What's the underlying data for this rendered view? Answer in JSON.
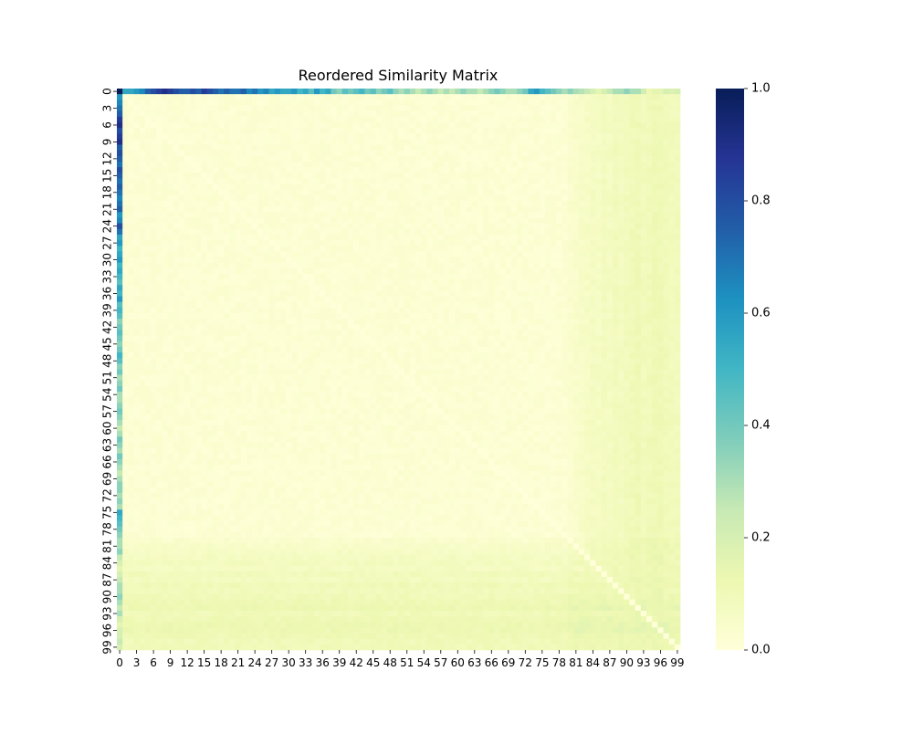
{
  "chart_data": {
    "type": "heatmap",
    "title": "Reordered Similarity Matrix",
    "xlabel": "",
    "ylabel": "",
    "n": 100,
    "x_tick_labels": [
      "0",
      "3",
      "6",
      "9",
      "12",
      "15",
      "18",
      "21",
      "24",
      "27",
      "30",
      "33",
      "36",
      "39",
      "42",
      "45",
      "48",
      "51",
      "54",
      "57",
      "60",
      "63",
      "66",
      "69",
      "72",
      "75",
      "78",
      "81",
      "84",
      "87",
      "90",
      "93",
      "96",
      "99"
    ],
    "y_tick_labels": [
      "0",
      "3",
      "6",
      "9",
      "12",
      "15",
      "18",
      "21",
      "24",
      "27",
      "30",
      "33",
      "36",
      "39",
      "42",
      "45",
      "48",
      "51",
      "54",
      "57",
      "60",
      "63",
      "66",
      "69",
      "72",
      "75",
      "78",
      "81",
      "84",
      "87",
      "90",
      "93",
      "96",
      "99"
    ],
    "colorbar": {
      "colormap": "YlGnBu",
      "vmin": 0.0,
      "vmax": 1.0,
      "tick_labels": [
        "0.0",
        "0.2",
        "0.4",
        "0.6",
        "0.8",
        "1.0"
      ],
      "colors": [
        "#ffffd9",
        "#edf8b1",
        "#c7e9b4",
        "#7fcdbb",
        "#41b6c4",
        "#1d91c0",
        "#225ea8",
        "#253494",
        "#081d58"
      ]
    },
    "row0_values": [
      1.0,
      0.55,
      0.55,
      0.6,
      0.65,
      0.75,
      0.8,
      0.85,
      0.9,
      0.85,
      0.8,
      0.75,
      0.75,
      0.8,
      0.75,
      0.85,
      0.8,
      0.75,
      0.7,
      0.75,
      0.7,
      0.7,
      0.75,
      0.65,
      0.7,
      0.6,
      0.65,
      0.55,
      0.6,
      0.55,
      0.55,
      0.6,
      0.5,
      0.55,
      0.45,
      0.6,
      0.5,
      0.55,
      0.4,
      0.35,
      0.45,
      0.4,
      0.45,
      0.5,
      0.4,
      0.45,
      0.35,
      0.4,
      0.45,
      0.35,
      0.3,
      0.35,
      0.3,
      0.25,
      0.3,
      0.35,
      0.3,
      0.25,
      0.3,
      0.25,
      0.3,
      0.35,
      0.3,
      0.3,
      0.25,
      0.3,
      0.35,
      0.4,
      0.35,
      0.3,
      0.3,
      0.35,
      0.4,
      0.55,
      0.6,
      0.5,
      0.45,
      0.4,
      0.35,
      0.3,
      0.35,
      0.3,
      0.28,
      0.25,
      0.2,
      0.15,
      0.2,
      0.25,
      0.3,
      0.3,
      0.35,
      0.3,
      0.3,
      0.22,
      0.12,
      0.15,
      0.15,
      0.2,
      0.18,
      0.2
    ],
    "col0_values": [
      1.0,
      0.6,
      0.65,
      0.7,
      0.75,
      0.85,
      0.9,
      0.8,
      0.85,
      0.9,
      0.75,
      0.8,
      0.75,
      0.7,
      0.8,
      0.75,
      0.7,
      0.75,
      0.7,
      0.65,
      0.7,
      0.75,
      0.6,
      0.65,
      0.8,
      0.7,
      0.55,
      0.6,
      0.5,
      0.55,
      0.6,
      0.5,
      0.55,
      0.5,
      0.45,
      0.55,
      0.5,
      0.6,
      0.45,
      0.5,
      0.45,
      0.35,
      0.4,
      0.45,
      0.4,
      0.35,
      0.4,
      0.5,
      0.45,
      0.35,
      0.4,
      0.3,
      0.35,
      0.4,
      0.3,
      0.3,
      0.35,
      0.4,
      0.35,
      0.3,
      0.25,
      0.3,
      0.4,
      0.35,
      0.3,
      0.4,
      0.35,
      0.3,
      0.25,
      0.3,
      0.35,
      0.35,
      0.3,
      0.35,
      0.3,
      0.55,
      0.5,
      0.45,
      0.4,
      0.35,
      0.3,
      0.3,
      0.35,
      0.25,
      0.2,
      0.15,
      0.2,
      0.25,
      0.3,
      0.3,
      0.35,
      0.3,
      0.25,
      0.3,
      0.2,
      0.15,
      0.2,
      0.2,
      0.25,
      0.2
    ],
    "off_diagonal_baseline": 0.02,
    "high_index_band_start": 80,
    "high_index_band_values": [
      0.04,
      0.05,
      0.06,
      0.07,
      0.08,
      0.07,
      0.09,
      0.08,
      0.1,
      0.09,
      0.1,
      0.11,
      0.12,
      0.1,
      0.11,
      0.12,
      0.12,
      0.11,
      0.1,
      0.1
    ]
  }
}
